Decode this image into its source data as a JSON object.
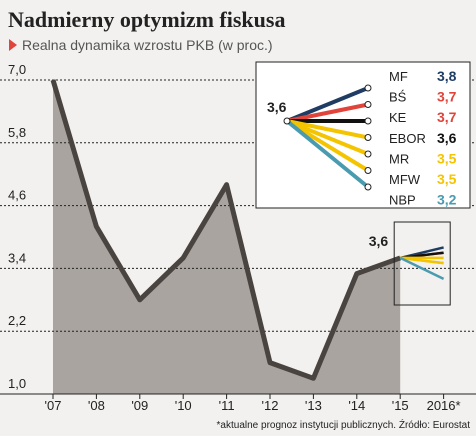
{
  "chart_data": {
    "type": "line",
    "title": "Nadmierny optymizm fiskusa",
    "subtitle": "Realna dynamika wzrostu PKB (w proc.)",
    "footnote": "*aktualne prognoz instytucji publicznych. Źródło: Eurostat",
    "categories": [
      "'07",
      "'08",
      "'09",
      "'10",
      "'11",
      "'12",
      "'13",
      "'14",
      "'15",
      "2016*"
    ],
    "series": [
      {
        "color": "#4a4440",
        "area_color": "#a9a49f",
        "values": [
          7.0,
          4.2,
          2.8,
          3.6,
          5.0,
          1.6,
          1.3,
          3.3,
          3.6,
          null
        ],
        "value_labels": [
          null,
          null,
          null,
          null,
          null,
          null,
          null,
          null,
          "3,6",
          null
        ]
      }
    ],
    "forecasts": [
      {
        "name": "MF",
        "value": 3.8,
        "value_label": "3,8",
        "color": "#1f3d63"
      },
      {
        "name": "BŚ",
        "value": 3.7,
        "value_label": "3,7",
        "color": "#e0443a"
      },
      {
        "name": "KE",
        "value": 3.7,
        "value_label": "3,7",
        "color": "#111111",
        "label_color": "#e0443a"
      },
      {
        "name": "EBOR",
        "value": 3.6,
        "value_label": "3,6",
        "color": "#f5c400",
        "label_color": "#111111"
      },
      {
        "name": "MR",
        "value": 3.5,
        "value_label": "3,5",
        "color": "#f5c400"
      },
      {
        "name": "MFW",
        "value": 3.5,
        "value_label": "3,5",
        "color": "#f5c400"
      },
      {
        "name": "NBP",
        "value": 3.2,
        "value_label": "3,2",
        "color": "#4a9bb0"
      }
    ],
    "ylim": [
      1.0,
      7.0
    ],
    "yticks": [
      {
        "value": 1.0,
        "label": "1,0"
      },
      {
        "value": 2.2,
        "label": "2,2"
      },
      {
        "value": 3.4,
        "label": "3,4"
      },
      {
        "value": 4.6,
        "label": "4,6"
      },
      {
        "value": 5.8,
        "label": "5,8"
      },
      {
        "value": 7.0,
        "label": "7,0"
      }
    ],
    "grid": true
  }
}
